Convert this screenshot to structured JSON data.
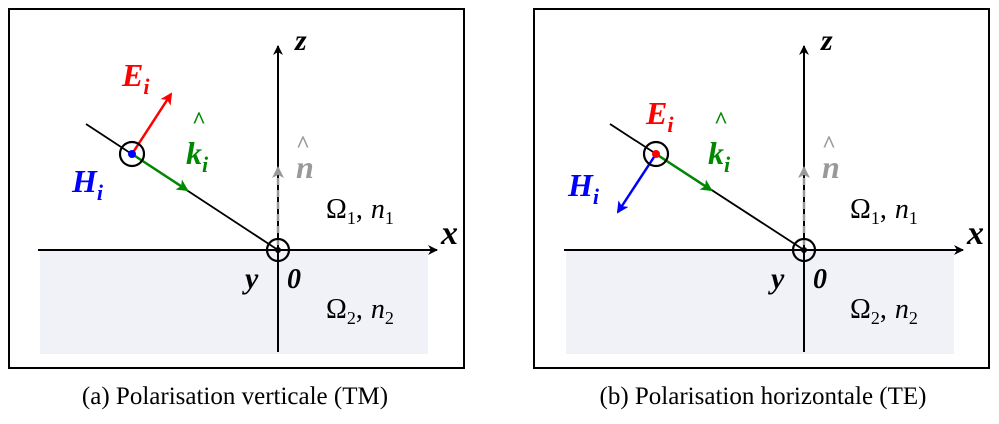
{
  "panels": [
    {
      "id": "a",
      "caption": "(a) Polarisation verticale (TM)",
      "labels": {
        "E": "E",
        "E_sub": "i",
        "H": "H",
        "H_sub": "i",
        "k": "k",
        "k_hat": "^",
        "k_sub": "i",
        "n_hat_letter": "n",
        "n_hat_mark": "^",
        "x": "x",
        "y": "y",
        "z": "z",
        "origin": "0",
        "region1": "Ω",
        "region1_sub": "1",
        "region1_n": "n",
        "region1_n_sub": "1",
        "region2": "Ω",
        "region2_sub": "2",
        "region2_n": "n",
        "region2_n_sub": "2",
        "sep": ","
      }
    },
    {
      "id": "b",
      "caption": "(b) Polarisation horizontale (TE)",
      "labels": {
        "E": "E",
        "E_sub": "i",
        "H": "H",
        "H_sub": "i",
        "k": "k",
        "k_hat": "^",
        "k_sub": "i",
        "n_hat_letter": "n",
        "n_hat_mark": "^",
        "x": "x",
        "y": "y",
        "z": "z",
        "origin": "0",
        "region1": "Ω",
        "region1_sub": "1",
        "region1_n": "n",
        "region1_n_sub": "1",
        "region2": "Ω",
        "region2_sub": "2",
        "region2_n": "n",
        "region2_n_sub": "2",
        "sep": ","
      }
    }
  ],
  "colors": {
    "E": "#ff0000",
    "H": "#0000ff",
    "k": "#008800",
    "n": "#999999",
    "medium2": "#f1f1f8",
    "frame": "#000000"
  }
}
